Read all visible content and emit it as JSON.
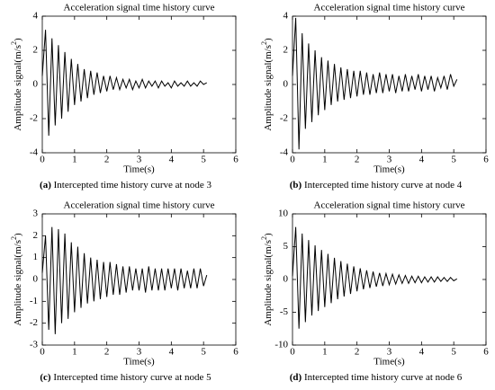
{
  "chart_data": [
    {
      "type": "line",
      "title": "Acceleration signal time history curve",
      "xlabel": "Time(s)",
      "ylabel": "Amplitude signal(m/s",
      "ylabel_sup": "2",
      "ylabel_end": ")",
      "label": "(a)",
      "caption": "Intercepted time history curve at node 3",
      "xlim": [
        0,
        6
      ],
      "xticks": [
        0,
        1,
        2,
        3,
        4,
        5,
        6
      ],
      "ylim": [
        -4,
        4
      ],
      "yticks": [
        -4,
        -2,
        0,
        2,
        4
      ],
      "color": "#000000",
      "x": [
        0,
        0.1,
        0.2,
        0.3,
        0.4,
        0.5,
        0.6,
        0.7,
        0.8,
        0.9,
        1,
        1.1,
        1.2,
        1.3,
        1.4,
        1.5,
        1.6,
        1.7,
        1.8,
        1.9,
        2,
        2.1,
        2.2,
        2.3,
        2.4,
        2.5,
        2.6,
        2.7,
        2.8,
        2.9,
        3,
        3.1,
        3.2,
        3.3,
        3.4,
        3.5,
        3.6,
        3.7,
        3.8,
        3.9,
        4,
        4.1,
        4.2,
        4.3,
        4.4,
        4.5,
        4.6,
        4.7,
        4.8,
        4.9,
        5,
        5.1
      ],
      "values": [
        0.5,
        3.2,
        -3.0,
        2.7,
        -2.4,
        2.3,
        -2.0,
        1.9,
        -1.6,
        1.5,
        -1.2,
        1.2,
        -1.0,
        0.9,
        -0.8,
        0.8,
        -0.6,
        0.7,
        -0.5,
        0.5,
        -0.4,
        0.5,
        -0.3,
        0.4,
        -0.3,
        0.3,
        -0.2,
        0.3,
        -0.3,
        0.2,
        -0.2,
        0.3,
        -0.2,
        0.2,
        -0.1,
        0.2,
        -0.2,
        0.2,
        -0.1,
        0.1,
        -0.2,
        0.2,
        -0.1,
        0.1,
        -0.1,
        0.2,
        -0.1,
        0.1,
        -0.1,
        0.2,
        0.0,
        0.1
      ]
    },
    {
      "type": "line",
      "title": "Acceleration signal time history curve",
      "xlabel": "Time(s)",
      "ylabel": "Amplitude signal(m/s",
      "ylabel_sup": "2",
      "ylabel_end": ")",
      "label": "(b)",
      "caption": "Intercepted time history curve at node 4",
      "xlim": [
        0,
        6
      ],
      "xticks": [
        0,
        1,
        2,
        3,
        4,
        5,
        6
      ],
      "ylim": [
        -4,
        4
      ],
      "yticks": [
        -4,
        -2,
        0,
        2,
        4
      ],
      "color": "#000000",
      "x": [
        0,
        0.1,
        0.2,
        0.3,
        0.4,
        0.5,
        0.6,
        0.7,
        0.8,
        0.9,
        1,
        1.1,
        1.2,
        1.3,
        1.4,
        1.5,
        1.6,
        1.7,
        1.8,
        1.9,
        2,
        2.1,
        2.2,
        2.3,
        2.4,
        2.5,
        2.6,
        2.7,
        2.8,
        2.9,
        3,
        3.1,
        3.2,
        3.3,
        3.4,
        3.5,
        3.6,
        3.7,
        3.8,
        3.9,
        4,
        4.1,
        4.2,
        4.3,
        4.4,
        4.5,
        4.6,
        4.7,
        4.8,
        4.9,
        5,
        5.1
      ],
      "values": [
        0.5,
        3.9,
        -3.8,
        3.0,
        -2.6,
        2.4,
        -2.2,
        2.0,
        -1.8,
        1.6,
        -1.5,
        1.4,
        -1.2,
        1.2,
        -1.0,
        1.0,
        -0.9,
        0.9,
        -0.8,
        0.8,
        -0.7,
        0.8,
        -0.6,
        0.7,
        -0.6,
        0.6,
        -0.5,
        0.7,
        -0.5,
        0.6,
        -0.4,
        0.6,
        -0.5,
        0.5,
        -0.4,
        0.6,
        -0.4,
        0.5,
        -0.3,
        0.6,
        -0.4,
        0.5,
        -0.3,
        0.5,
        -0.4,
        0.4,
        -0.2,
        0.5,
        -0.3,
        0.6,
        -0.1,
        0.3
      ]
    },
    {
      "type": "line",
      "title": "Acceleration signal time history curve",
      "xlabel": "Time(s)",
      "ylabel": "Amplitude signal(m/s",
      "ylabel_sup": "2",
      "ylabel_end": ")",
      "label": "(c)",
      "caption": "Intercepted time history curve at node 5",
      "xlim": [
        0,
        6
      ],
      "xticks": [
        0,
        1,
        2,
        3,
        4,
        5,
        6
      ],
      "ylim": [
        -3,
        3
      ],
      "yticks": [
        -3,
        -2,
        -1,
        0,
        1,
        2,
        3
      ],
      "color": "#000000",
      "x": [
        0,
        0.1,
        0.2,
        0.3,
        0.4,
        0.5,
        0.6,
        0.7,
        0.8,
        0.9,
        1,
        1.1,
        1.2,
        1.3,
        1.4,
        1.5,
        1.6,
        1.7,
        1.8,
        1.9,
        2,
        2.1,
        2.2,
        2.3,
        2.4,
        2.5,
        2.6,
        2.7,
        2.8,
        2.9,
        3,
        3.1,
        3.2,
        3.3,
        3.4,
        3.5,
        3.6,
        3.7,
        3.8,
        3.9,
        4,
        4.1,
        4.2,
        4.3,
        4.4,
        4.5,
        4.6,
        4.7,
        4.8,
        4.9,
        5,
        5.1
      ],
      "values": [
        0.3,
        2.0,
        -2.3,
        2.4,
        -2.5,
        2.3,
        -2.0,
        2.1,
        -1.8,
        1.7,
        -1.5,
        1.5,
        -1.3,
        1.2,
        -1.1,
        1.0,
        -1.0,
        0.9,
        -0.9,
        0.8,
        -0.8,
        0.8,
        -0.7,
        0.7,
        -0.7,
        0.6,
        -0.6,
        0.6,
        -0.5,
        0.5,
        -0.5,
        0.5,
        -0.6,
        0.6,
        -0.5,
        0.5,
        -0.5,
        0.5,
        -0.5,
        0.5,
        -0.4,
        0.5,
        -0.5,
        0.5,
        -0.4,
        0.4,
        -0.4,
        0.5,
        -0.4,
        0.5,
        -0.3,
        0.2
      ]
    },
    {
      "type": "line",
      "title": "Acceleration signal time history curve",
      "xlabel": "Time(s)",
      "ylabel": "Amplitude signal(m/s",
      "ylabel_sup": "2",
      "ylabel_end": ")",
      "label": "(d)",
      "caption": "Intercepted time history curve at node 6",
      "xlim": [
        0,
        6
      ],
      "xticks": [
        0,
        1,
        2,
        3,
        4,
        5,
        6
      ],
      "ylim": [
        -10,
        10
      ],
      "yticks": [
        -10,
        -5,
        0,
        5,
        10
      ],
      "color": "#000000",
      "x": [
        0,
        0.1,
        0.2,
        0.3,
        0.4,
        0.5,
        0.6,
        0.7,
        0.8,
        0.9,
        1,
        1.1,
        1.2,
        1.3,
        1.4,
        1.5,
        1.6,
        1.7,
        1.8,
        1.9,
        2,
        2.1,
        2.2,
        2.3,
        2.4,
        2.5,
        2.6,
        2.7,
        2.8,
        2.9,
        3,
        3.1,
        3.2,
        3.3,
        3.4,
        3.5,
        3.6,
        3.7,
        3.8,
        3.9,
        4,
        4.1,
        4.2,
        4.3,
        4.4,
        4.5,
        4.6,
        4.7,
        4.8,
        4.9,
        5,
        5.1
      ],
      "values": [
        0.5,
        8.0,
        -7.5,
        7.0,
        -6.5,
        6.0,
        -5.5,
        5.2,
        -4.8,
        4.5,
        -4.2,
        3.9,
        -3.6,
        3.3,
        -3.0,
        2.8,
        -2.6,
        2.4,
        -2.2,
        2.0,
        -1.8,
        1.7,
        -1.5,
        1.4,
        -1.3,
        1.2,
        -1.1,
        1.0,
        -1.0,
        0.9,
        -0.8,
        0.8,
        -0.7,
        0.7,
        -0.6,
        0.6,
        -0.6,
        0.5,
        -0.5,
        0.5,
        -0.5,
        0.4,
        -0.4,
        0.4,
        -0.4,
        0.4,
        -0.3,
        0.3,
        -0.3,
        0.3,
        -0.2,
        0.1
      ]
    }
  ]
}
